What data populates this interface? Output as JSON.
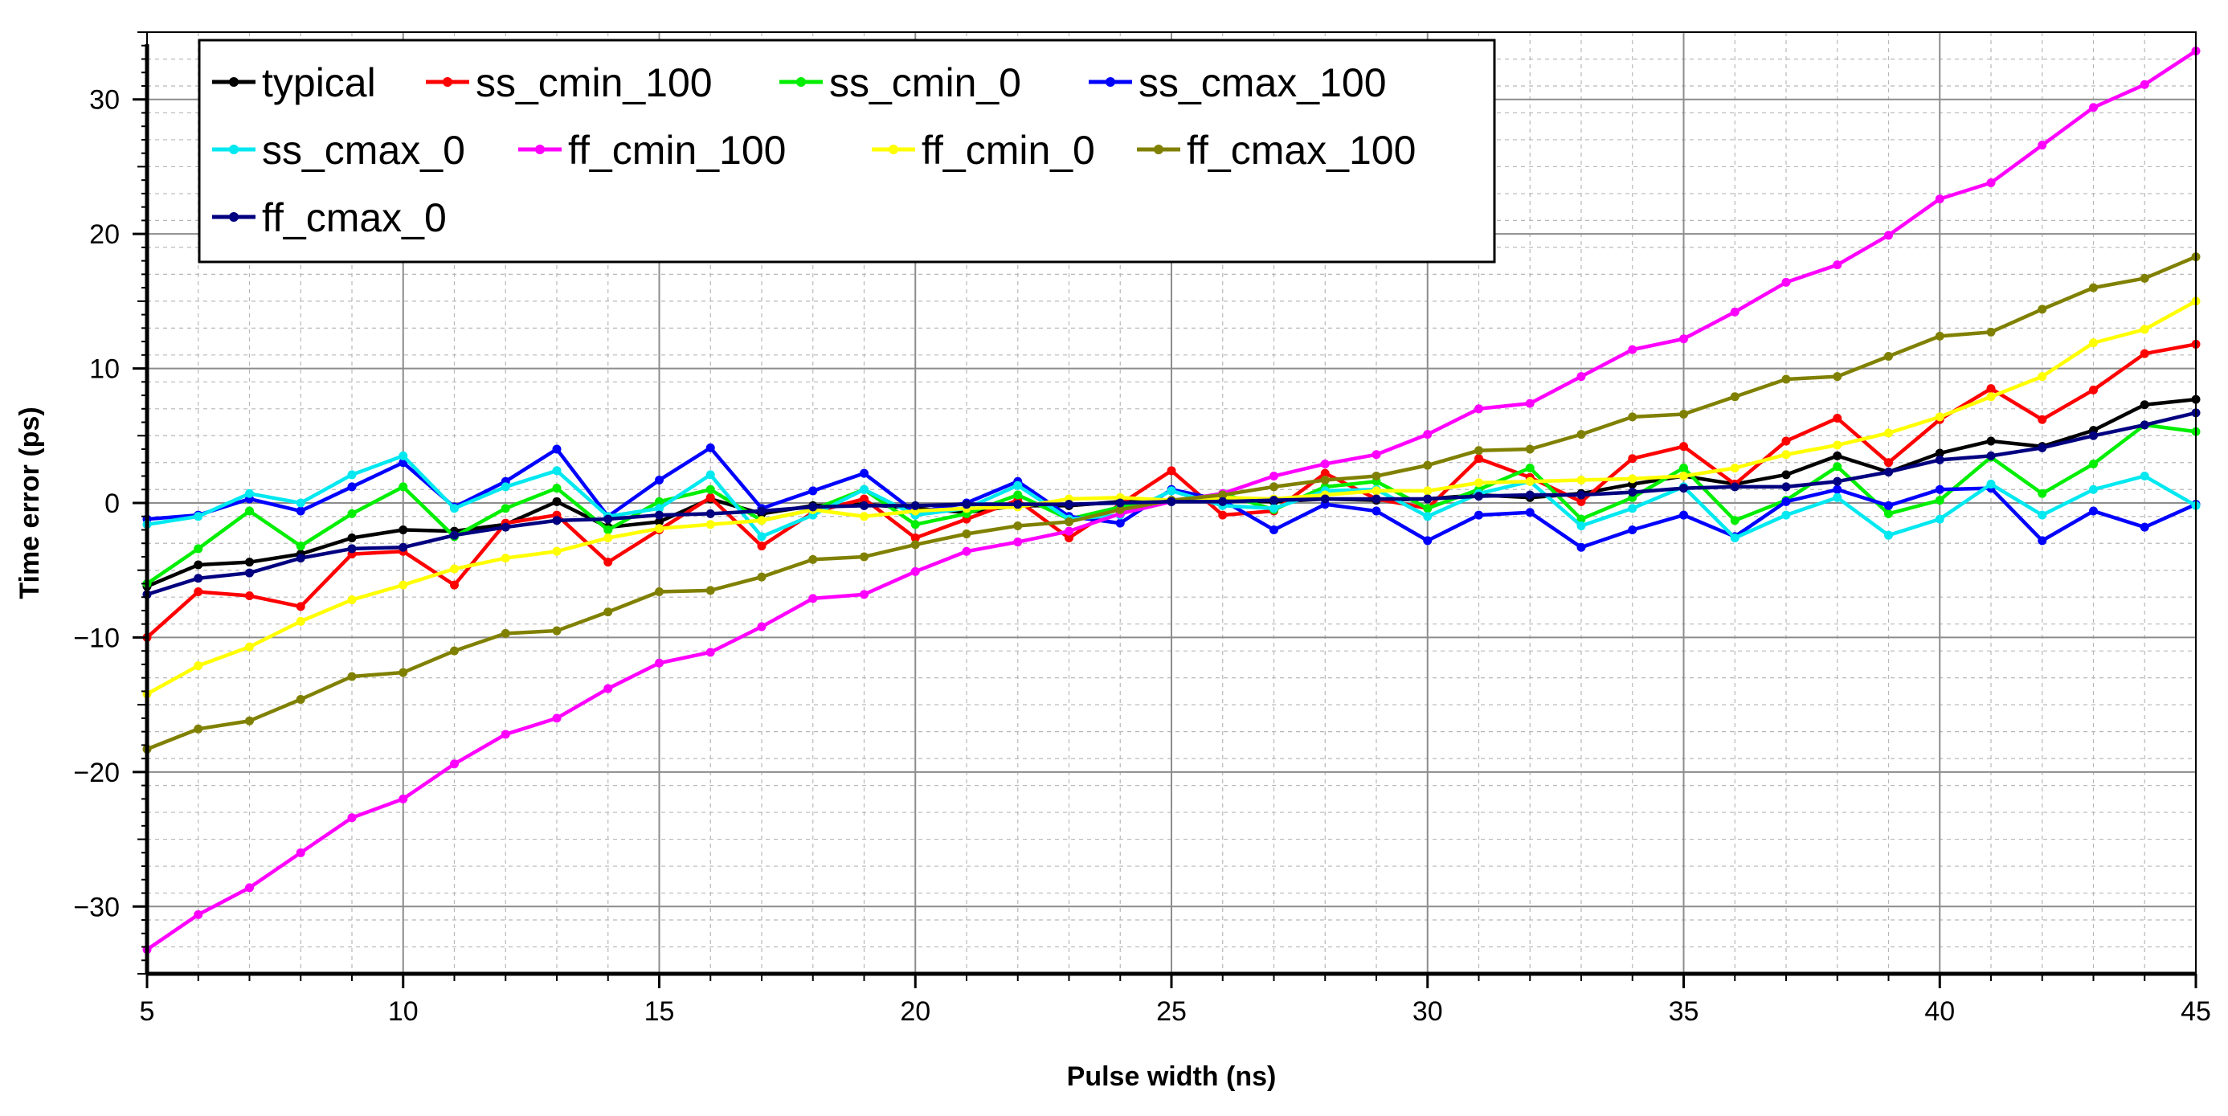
{
  "chart_data": {
    "type": "line",
    "title": "",
    "xlabel": "Pulse width (ns)",
    "ylabel": "Time error (ps)",
    "xlim": [
      5,
      45
    ],
    "ylim": [
      -35,
      35
    ],
    "xticks": [
      5,
      10,
      15,
      20,
      25,
      30,
      35,
      40,
      45
    ],
    "yticks": [
      -30,
      -20,
      -10,
      0,
      10,
      20,
      30
    ],
    "ytick_labels": [
      "−30",
      "−20",
      "−10",
      "0",
      "10",
      "20",
      "30"
    ],
    "grid": true,
    "legend_position": "top-left",
    "x": [
      5,
      6,
      7,
      8,
      9,
      10,
      11,
      12,
      13,
      14,
      15,
      16,
      17,
      18,
      19,
      20,
      21,
      22,
      23,
      24,
      25,
      26,
      27,
      28,
      29,
      30,
      31,
      32,
      33,
      34,
      35,
      36,
      37,
      38,
      39,
      40,
      41,
      42,
      43,
      44,
      45
    ],
    "series": [
      {
        "name": "typical",
        "color": "#000000",
        "values": [
          -6.2,
          -4.6,
          -4.4,
          -3.8,
          -2.6,
          -2.0,
          -2.1,
          -1.6,
          0.1,
          -1.8,
          -1.4,
          0.3,
          -0.8,
          -0.2,
          -0.1,
          -0.4,
          -0.7,
          -0.2,
          -0.2,
          0.1,
          0.1,
          0.2,
          0.1,
          0.3,
          0.2,
          0.3,
          0.6,
          0.4,
          0.7,
          1.4,
          2.0,
          1.4,
          2.1,
          3.5,
          2.3,
          3.7,
          4.6,
          4.2,
          5.4,
          7.3,
          7.7
        ]
      },
      {
        "name": "ss_cmin_100",
        "color": "#ff0000",
        "values": [
          -10.0,
          -6.6,
          -6.9,
          -7.7,
          -3.8,
          -3.6,
          -6.1,
          -1.5,
          -0.9,
          -4.4,
          -2.0,
          0.4,
          -3.2,
          -0.7,
          0.3,
          -2.6,
          -1.2,
          0.2,
          -2.6,
          -0.1,
          2.4,
          -0.9,
          -0.6,
          2.2,
          0.3,
          -0.4,
          3.3,
          1.9,
          0.1,
          3.3,
          4.2,
          1.4,
          4.6,
          6.3,
          3.0,
          6.2,
          8.5,
          6.2,
          8.4,
          11.1,
          11.8
        ]
      },
      {
        "name": "ss_cmin_0",
        "color": "#00ee00",
        "values": [
          -6.0,
          -3.4,
          -0.6,
          -3.2,
          -0.8,
          1.2,
          -2.5,
          -0.4,
          1.1,
          -2.0,
          0.1,
          1.0,
          -1.3,
          -0.5,
          1.0,
          -1.6,
          -0.8,
          0.6,
          -1.2,
          -0.3,
          0.1,
          0.7,
          -0.5,
          1.2,
          1.6,
          -0.4,
          1.0,
          2.6,
          -1.2,
          0.4,
          2.6,
          -1.3,
          0.2,
          2.7,
          -0.8,
          0.2,
          3.4,
          0.7,
          2.9,
          5.8,
          5.3
        ]
      },
      {
        "name": "ss_cmax_100",
        "color": "#0000ff",
        "values": [
          -1.2,
          -0.9,
          0.3,
          -0.6,
          1.2,
          3.0,
          -0.3,
          1.6,
          4.0,
          -1.0,
          1.7,
          4.1,
          -0.4,
          0.9,
          2.2,
          -0.7,
          0.0,
          1.6,
          -1.0,
          -1.5,
          1.0,
          0.2,
          -2.0,
          -0.1,
          -0.6,
          -2.8,
          -0.9,
          -0.7,
          -3.3,
          -2.0,
          -0.9,
          -2.5,
          0.1,
          1.0,
          -0.2,
          1.0,
          1.1,
          -2.8,
          -0.6,
          -1.8,
          -0.1
        ]
      },
      {
        "name": "ss_cmax_0",
        "color": "#00e8f0",
        "values": [
          -1.6,
          -1.0,
          0.7,
          0.0,
          2.1,
          3.5,
          -0.4,
          1.2,
          2.4,
          -1.0,
          -0.4,
          2.1,
          -2.5,
          -0.9,
          1.0,
          -0.9,
          -0.4,
          1.3,
          -1.2,
          -0.9,
          0.9,
          -0.2,
          -0.4,
          0.9,
          1.0,
          -1.0,
          0.7,
          1.6,
          -1.7,
          -0.4,
          1.2,
          -2.6,
          -0.9,
          0.4,
          -2.4,
          -1.2,
          1.4,
          -0.9,
          1.0,
          2.0,
          -0.2
        ]
      },
      {
        "name": "ff_cmin_100",
        "color": "#ff00ff",
        "values": [
          -33.2,
          -30.6,
          -28.6,
          -26.0,
          -23.4,
          -22.0,
          -19.4,
          -17.2,
          -16.0,
          -13.8,
          -11.9,
          -11.1,
          -9.2,
          -7.1,
          -6.8,
          -5.1,
          -3.6,
          -2.9,
          -2.1,
          -0.8,
          0.1,
          0.7,
          2.0,
          2.9,
          3.6,
          5.1,
          7.0,
          7.4,
          9.4,
          11.4,
          12.2,
          14.2,
          16.4,
          17.7,
          19.9,
          22.6,
          23.8,
          26.6,
          29.4,
          31.1,
          33.6
        ]
      },
      {
        "name": "ff_cmin_0",
        "color": "#ffff00",
        "values": [
          -14.2,
          -12.1,
          -10.7,
          -8.8,
          -7.2,
          -6.1,
          -4.9,
          -4.1,
          -3.6,
          -2.6,
          -1.9,
          -1.6,
          -1.3,
          -0.5,
          -1.0,
          -0.6,
          -0.4,
          -0.3,
          0.3,
          0.4,
          0.2,
          0.4,
          0.3,
          0.6,
          0.9,
          0.9,
          1.5,
          1.6,
          1.7,
          1.8,
          2.0,
          2.6,
          3.6,
          4.3,
          5.2,
          6.4,
          7.9,
          9.4,
          11.9,
          12.9,
          15.0
        ]
      },
      {
        "name": "ff_cmax_100",
        "color": "#808000",
        "values": [
          -18.3,
          -16.8,
          -16.2,
          -14.6,
          -12.9,
          -12.6,
          -11.0,
          -9.7,
          -9.5,
          -8.1,
          -6.6,
          -6.5,
          -5.5,
          -4.2,
          -4.0,
          -3.1,
          -2.3,
          -1.7,
          -1.4,
          -0.5,
          0.2,
          0.6,
          1.2,
          1.7,
          2.0,
          2.8,
          3.9,
          4.0,
          5.1,
          6.4,
          6.6,
          7.9,
          9.2,
          9.4,
          10.9,
          12.4,
          12.7,
          14.4,
          16.0,
          16.7,
          18.3
        ]
      },
      {
        "name": "ff_cmax_0",
        "color": "#000080",
        "values": [
          -6.8,
          -5.6,
          -5.2,
          -4.1,
          -3.4,
          -3.3,
          -2.4,
          -1.8,
          -1.3,
          -1.2,
          -0.9,
          -0.8,
          -0.6,
          -0.3,
          -0.2,
          -0.2,
          -0.1,
          -0.1,
          -0.1,
          0.0,
          0.1,
          0.1,
          0.2,
          0.3,
          0.3,
          0.3,
          0.5,
          0.6,
          0.6,
          0.8,
          1.1,
          1.2,
          1.2,
          1.6,
          2.3,
          3.2,
          3.5,
          4.1,
          5.0,
          5.8,
          6.7
        ]
      }
    ]
  }
}
